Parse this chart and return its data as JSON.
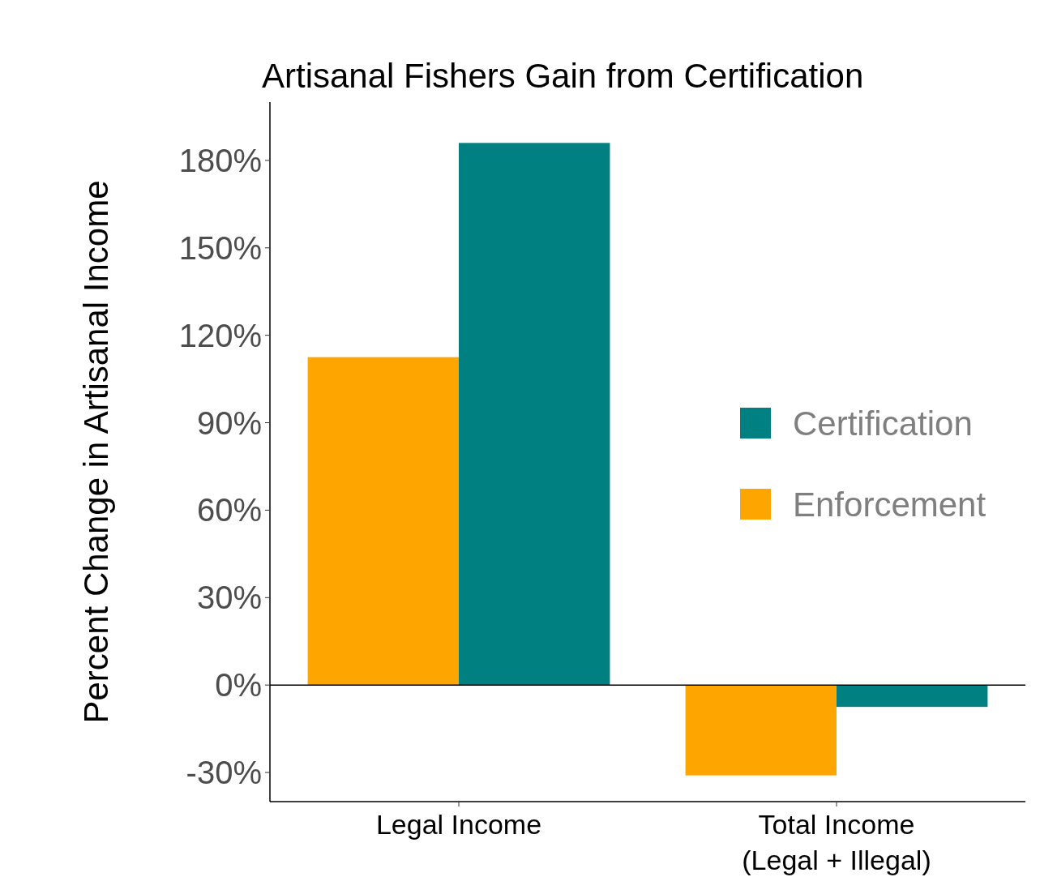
{
  "chart_data": {
    "type": "bar",
    "title": "Artisanal Fishers Gain from Certification",
    "ylabel": "Percent Change in Artisanal Income",
    "categories": [
      "Legal Income",
      "Total Income\n(Legal + Illegal)"
    ],
    "series": [
      {
        "name": "Enforcement",
        "color": "#ffa500",
        "values": [
          112.5,
          -31
        ]
      },
      {
        "name": "Certification",
        "color": "#008080",
        "values": [
          186,
          -7.5
        ]
      }
    ],
    "ylim": [
      -40,
      200
    ],
    "yticks": [
      {
        "value": -30,
        "label": "-30%"
      },
      {
        "value": 0,
        "label": "0%"
      },
      {
        "value": 30,
        "label": "30%"
      },
      {
        "value": 60,
        "label": "60%"
      },
      {
        "value": 90,
        "label": "90%"
      },
      {
        "value": 120,
        "label": "120%"
      },
      {
        "value": 150,
        "label": "150%"
      },
      {
        "value": 180,
        "label": "180%"
      }
    ],
    "ref_lines": [
      {
        "axis": "y",
        "value": 0,
        "color": "#000000"
      }
    ],
    "grid": false,
    "legend": "right"
  }
}
